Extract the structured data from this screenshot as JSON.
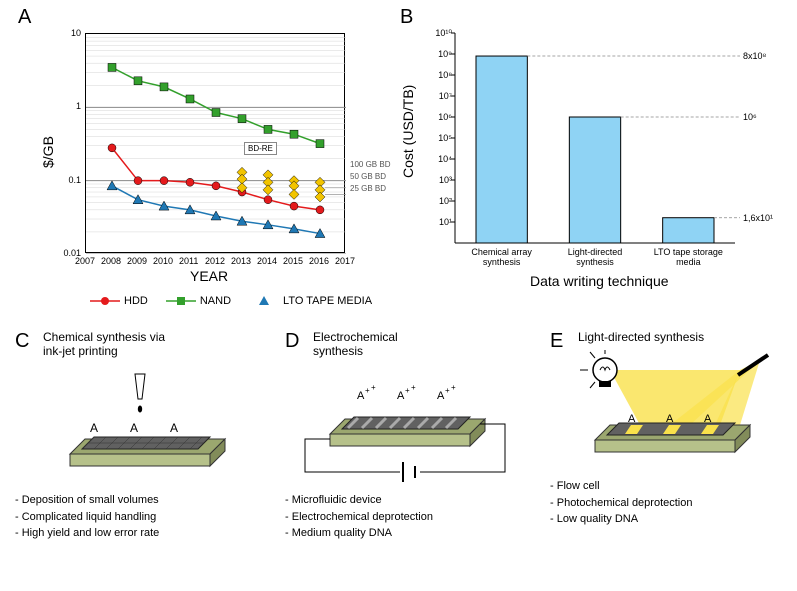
{
  "panelA": {
    "label": "A",
    "type": "line",
    "xlabel": "YEAR",
    "ylabel": "$/GB",
    "xlim": [
      2007,
      2017
    ],
    "xticks": [
      2007,
      2008,
      2009,
      2010,
      2011,
      2012,
      2013,
      2014,
      2015,
      2016,
      2017
    ],
    "yscale": "log",
    "ylim": [
      0.01,
      10
    ],
    "yticks": [
      0.01,
      0.1,
      1,
      10
    ],
    "ytick_labels": [
      "0.01",
      "0.1",
      "1",
      "10"
    ],
    "grid_color": "#bfbfbf",
    "series": {
      "HDD": {
        "color": "#e41a1c",
        "marker": "circle",
        "x": [
          2008,
          2009,
          2010,
          2011,
          2012,
          2013,
          2014,
          2015,
          2016
        ],
        "y": [
          0.28,
          0.1,
          0.1,
          0.095,
          0.085,
          0.07,
          0.055,
          0.045,
          0.04
        ]
      },
      "NAND": {
        "color": "#33a02c",
        "marker": "square",
        "x": [
          2008,
          2009,
          2010,
          2011,
          2012,
          2013,
          2014,
          2015,
          2016
        ],
        "y": [
          3.5,
          2.3,
          1.9,
          1.3,
          0.85,
          0.7,
          0.5,
          0.43,
          0.32
        ]
      },
      "LTO": {
        "color": "#1f78b4",
        "marker": "triangle",
        "x": [
          2008,
          2009,
          2010,
          2011,
          2012,
          2013,
          2014,
          2015,
          2016
        ],
        "y": [
          0.085,
          0.055,
          0.045,
          0.04,
          0.033,
          0.028,
          0.025,
          0.022,
          0.019
        ]
      },
      "BD": {
        "color": "#f2c400",
        "marker": "diamond",
        "points": [
          [
            2013,
            0.13
          ],
          [
            2013,
            0.105
          ],
          [
            2013,
            0.08
          ],
          [
            2014,
            0.12
          ],
          [
            2014,
            0.095
          ],
          [
            2014,
            0.075
          ],
          [
            2015,
            0.1
          ],
          [
            2015,
            0.085
          ],
          [
            2015,
            0.065
          ],
          [
            2016,
            0.095
          ],
          [
            2016,
            0.075
          ],
          [
            2016,
            0.06
          ]
        ]
      }
    },
    "annotations": {
      "bdre_box": "BD-RE",
      "bd_labels": [
        "100 GB BD",
        "50 GB BD",
        "25 GB BD"
      ]
    },
    "legend": [
      {
        "label": "HDD",
        "color": "#e41a1c",
        "marker": "circle"
      },
      {
        "label": "NAND",
        "color": "#33a02c",
        "marker": "square"
      },
      {
        "label": "LTO TAPE MEDIA",
        "color": "#1f78b4",
        "marker": "triangle"
      }
    ],
    "label_fontsize": 14,
    "tick_fontsize": 9
  },
  "panelB": {
    "label": "B",
    "type": "bar",
    "xlabel": "Data writing technique",
    "ylabel": "Cost (USD/TB)",
    "yscale": "log",
    "ylim": [
      1,
      10000000000.0
    ],
    "yticks": [
      10.0,
      100.0,
      1000.0,
      10000.0,
      100000.0,
      1000000.0,
      10000000.0,
      100000000.0,
      1000000000.0,
      10000000000.0
    ],
    "ytick_labels": [
      "10¹",
      "10²",
      "10³",
      "10⁴",
      "10⁵",
      "10⁶",
      "10⁷",
      "10⁸",
      "10⁹",
      "10¹⁰"
    ],
    "categories": [
      "Chemical array\nsynthesis",
      "Light-directed\nsynthesis",
      "LTO tape storage\nmedia"
    ],
    "values": [
      800000000.0,
      1000000.0,
      16
    ],
    "right_annotations": [
      "8x10⁸",
      "10⁶",
      "1,6x10¹"
    ],
    "bar_color": "#8fd3f4",
    "bar_border": "#000000",
    "background_color": "#ffffff",
    "bar_width": 0.55
  },
  "panelC": {
    "label": "C",
    "title": "Chemical synthesis via\nink-jet printing",
    "bullets": [
      "Deposition of small volumes",
      "Complicated liquid handling",
      "High yield and low error rate"
    ],
    "chip_color": "#9ba76f",
    "surface_color": "#616161",
    "letters": [
      "A",
      "A",
      "A"
    ]
  },
  "panelD": {
    "label": "D",
    "title": "Electrochemical\nsynthesis",
    "bullets": [
      "Microfluidic device",
      "Electrochemical deprotection",
      "Medium quality DNA"
    ],
    "chip_color": "#9ba76f",
    "surface_color": "#616161",
    "ions": [
      "A⁺",
      "A⁺",
      "A⁺"
    ]
  },
  "panelE": {
    "label": "E",
    "title": "Light-directed synthesis",
    "bullets": [
      "Flow cell",
      "Photochemical deprotection",
      "Low quality DNA"
    ],
    "chip_color": "#9ba76f",
    "surface_color": "#616161",
    "light_color": "#f9e14b",
    "letters": [
      "A",
      "A",
      "A"
    ]
  }
}
